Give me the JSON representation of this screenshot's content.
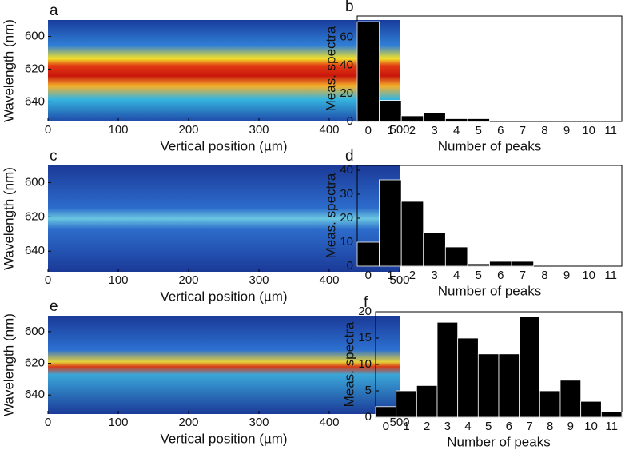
{
  "chart_data": [
    {
      "type": "heatmap",
      "label": "a",
      "xlabel": "Vertical position (µm)",
      "ylabel": "Wavelength (nm)",
      "xlim": [
        0,
        500
      ],
      "xticks": [
        0,
        100,
        200,
        300,
        400,
        500
      ],
      "ylim": [
        590,
        652
      ],
      "yticks": [
        600,
        620,
        640
      ]
    },
    {
      "type": "bar",
      "label": "b",
      "xlabel": "Number of peaks",
      "ylabel": "Meas. spectra",
      "categories": [
        "0",
        "1",
        "2",
        "3",
        "4",
        "5",
        "6",
        "7",
        "8",
        "9",
        "10",
        "11"
      ],
      "values": [
        71,
        15,
        4,
        6,
        2,
        2,
        0,
        0,
        0,
        0,
        0,
        0
      ],
      "color": "#000000",
      "ylim": [
        0,
        75
      ],
      "yticks": [
        0,
        20,
        40,
        60
      ]
    },
    {
      "type": "heatmap",
      "label": "c",
      "xlabel": "Vertical position (µm)",
      "ylabel": "Wavelength (nm)",
      "xlim": [
        0,
        500
      ],
      "xticks": [
        0,
        100,
        200,
        300,
        400,
        500
      ],
      "ylim": [
        590,
        652
      ],
      "yticks": [
        600,
        620,
        640
      ]
    },
    {
      "type": "bar",
      "label": "d",
      "xlabel": "Number of peaks",
      "ylabel": "Meas. spectra",
      "categories": [
        "0",
        "1",
        "2",
        "3",
        "4",
        "5",
        "6",
        "7",
        "8",
        "9",
        "10",
        "11"
      ],
      "values": [
        10,
        36,
        27,
        14,
        8,
        1,
        2,
        2,
        0,
        0,
        0,
        0
      ],
      "color": "#000000",
      "ylim": [
        0,
        42
      ],
      "yticks": [
        0,
        10,
        20,
        30,
        40
      ]
    },
    {
      "type": "heatmap",
      "label": "e",
      "xlabel": "Vertical position (µm)",
      "ylabel": "Wavelength (nm)",
      "xlim": [
        0,
        500
      ],
      "xticks": [
        0,
        100,
        200,
        300,
        400,
        500
      ],
      "ylim": [
        590,
        652
      ],
      "yticks": [
        600,
        620,
        640
      ]
    },
    {
      "type": "bar",
      "label": "f",
      "xlabel": "Number of peaks",
      "ylabel": "Meas. spectra",
      "categories": [
        "0",
        "1",
        "2",
        "3",
        "4",
        "5",
        "6",
        "7",
        "8",
        "9",
        "10",
        "11"
      ],
      "values": [
        2,
        5,
        6,
        18,
        15,
        12,
        12,
        19,
        5,
        7,
        3,
        1
      ],
      "color": "#000000",
      "ylim": [
        0,
        20
      ],
      "yticks": [
        0,
        5,
        10,
        15,
        20
      ]
    }
  ]
}
